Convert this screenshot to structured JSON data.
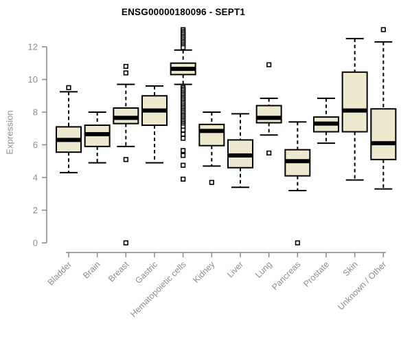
{
  "title": "ENSG00000180096 - SEPT1",
  "colors": {
    "box_fill": "#ede8ce",
    "box_border": "#000000",
    "median": "#000000",
    "whisker": "#000000",
    "outlier_stroke": "#000000",
    "outlier_fill": "#ffffff",
    "axis_line": "#888888",
    "axis_text": "#8d8d8d",
    "title_text": "#000000",
    "background": "#ffffff"
  },
  "chart_data": {
    "type": "boxplot",
    "title": "ENSG00000180096 - SEPT1",
    "xlabel": "",
    "ylabel": "Expression",
    "ylim": [
      0,
      13.2
    ],
    "yticks": [
      0,
      2,
      4,
      6,
      8,
      10,
      12
    ],
    "grid": false,
    "legend": "none",
    "categories": [
      "Bladder",
      "Brain",
      "Breast",
      "Gastric",
      "Hematopoietic cells",
      "Kidney",
      "Liver",
      "Lung",
      "Pancreas",
      "Prostate",
      "Skin",
      "Unknown / Other"
    ],
    "series": [
      {
        "name": "Bladder",
        "whisker_low": 4.3,
        "q1": 5.55,
        "median": 6.3,
        "q3": 7.1,
        "whisker_high": 9.25,
        "outliers": [
          9.5
        ]
      },
      {
        "name": "Brain",
        "whisker_low": 4.9,
        "q1": 5.9,
        "median": 6.65,
        "q3": 7.2,
        "whisker_high": 8.0,
        "outliers": []
      },
      {
        "name": "Breast",
        "whisker_low": 5.9,
        "q1": 7.3,
        "median": 7.65,
        "q3": 8.25,
        "whisker_high": 9.7,
        "outliers": [
          10.8,
          10.4,
          5.1,
          0.0
        ]
      },
      {
        "name": "Gastric",
        "whisker_low": 4.9,
        "q1": 7.2,
        "median": 8.1,
        "q3": 9.0,
        "whisker_high": 9.6,
        "outliers": []
      },
      {
        "name": "Hematopoietic cells",
        "whisker_low": 9.7,
        "q1": 10.3,
        "median": 10.65,
        "q3": 11.0,
        "whisker_high": 11.8,
        "outliers": [
          13.05,
          12.95,
          12.85,
          12.75,
          12.65,
          12.55,
          12.45,
          12.35,
          12.25,
          12.15,
          12.05,
          11.95,
          9.5,
          9.4,
          9.3,
          9.2,
          9.1,
          9.0,
          8.9,
          8.8,
          8.7,
          8.6,
          8.5,
          8.4,
          8.3,
          8.2,
          8.1,
          8.0,
          7.9,
          7.8,
          7.7,
          7.6,
          7.5,
          7.4,
          7.3,
          7.2,
          7.1,
          6.9,
          6.65,
          6.4,
          5.65,
          5.35,
          4.75,
          3.9
        ]
      },
      {
        "name": "Kidney",
        "whisker_low": 4.7,
        "q1": 5.95,
        "median": 6.85,
        "q3": 7.25,
        "whisker_high": 8.0,
        "outliers": [
          3.7
        ]
      },
      {
        "name": "Liver",
        "whisker_low": 3.4,
        "q1": 4.6,
        "median": 5.35,
        "q3": 6.3,
        "whisker_high": 7.9,
        "outliers": []
      },
      {
        "name": "Lung",
        "whisker_low": 6.6,
        "q1": 7.35,
        "median": 7.65,
        "q3": 8.4,
        "whisker_high": 8.85,
        "outliers": [
          10.9,
          5.5
        ]
      },
      {
        "name": "Pancreas",
        "whisker_low": 3.2,
        "q1": 4.1,
        "median": 5.0,
        "q3": 5.7,
        "whisker_high": 7.4,
        "outliers": [
          0.0
        ]
      },
      {
        "name": "Prostate",
        "whisker_low": 6.1,
        "q1": 6.8,
        "median": 7.3,
        "q3": 7.7,
        "whisker_high": 8.85,
        "outliers": []
      },
      {
        "name": "Skin",
        "whisker_low": 3.85,
        "q1": 6.8,
        "median": 8.1,
        "q3": 10.45,
        "whisker_high": 12.5,
        "outliers": []
      },
      {
        "name": "Unknown / Other",
        "whisker_low": 3.3,
        "q1": 5.1,
        "median": 6.1,
        "q3": 8.2,
        "whisker_high": 12.3,
        "outliers": [
          13.05
        ]
      }
    ]
  }
}
